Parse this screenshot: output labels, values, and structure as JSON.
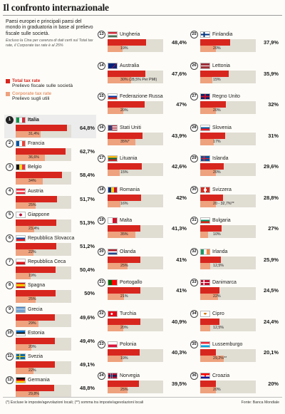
{
  "title": "Il confronto internazionale",
  "intro": {
    "text": "Paesi europei e principali paesi del mondo in graduatoria in base al prelievo fiscale sulle società.",
    "note": "Escluso la Cina per carenza di dati certi sul Total tax rate, il Corporate tax rate è al 25%"
  },
  "legend": {
    "total": {
      "label": "Total tax rate",
      "description": "Prelievo fiscale sulle società",
      "color": "#d7261e"
    },
    "corporate": {
      "label": "Corporate tax rate",
      "description": "Prelievo sugli utili",
      "color": "#eea27e"
    }
  },
  "footnote": "(*) Escluse le imposte/agevolazioni locali; (**) somma tra imposte/agevolazioni locali",
  "source": "Fonte: Banca Mondiale",
  "chart_data": {
    "type": "bar",
    "xlim": [
      0,
      70
    ],
    "series": [
      {
        "name": "Total tax rate",
        "key": "total"
      },
      {
        "name": "Corporate tax rate",
        "key": "corp"
      }
    ],
    "countries": [
      {
        "rank": "1",
        "name": "Italia",
        "flag": "it",
        "total": 64.8,
        "total_label": "64,8%",
        "corp": 31.4,
        "corp_label": "31,4%"
      },
      {
        "rank": "2",
        "name": "Francia",
        "flag": "fr",
        "total": 62.7,
        "total_label": "62,7%",
        "corp": 36.6,
        "corp_label": "36,6%"
      },
      {
        "rank": "3",
        "name": "Belgio",
        "flag": "be",
        "total": 58.4,
        "total_label": "58,4%",
        "corp": 34,
        "corp_label": "34%"
      },
      {
        "rank": "4",
        "name": "Austria",
        "flag": "at",
        "total": 51.7,
        "total_label": "51,7%",
        "corp": 25,
        "corp_label": "25%"
      },
      {
        "rank": "5",
        "name": "Giappone",
        "flag": "jp",
        "total": 51.3,
        "total_label": "51,3%",
        "corp": 23.4,
        "corp_label": "23,4%"
      },
      {
        "rank": "6",
        "name": "Repubblica Slovacca",
        "flag": "sk",
        "total": 51.2,
        "total_label": "51,2%",
        "corp": 22,
        "corp_label": "22%"
      },
      {
        "rank": "7",
        "name": "Repubblica Ceca",
        "flag": "cz",
        "total": 50.4,
        "total_label": "50,4%",
        "corp": 19,
        "corp_label": "19%"
      },
      {
        "rank": "8",
        "name": "Spagna",
        "flag": "es",
        "total": 50,
        "total_label": "50%",
        "corp": 25,
        "corp_label": "25%"
      },
      {
        "rank": "9",
        "name": "Grecia",
        "flag": "gr",
        "total": 49.6,
        "total_label": "49,6%",
        "corp": 29,
        "corp_label": "29%"
      },
      {
        "rank": "10",
        "name": "Estonia",
        "flag": "ee",
        "total": 49.4,
        "total_label": "49,4%",
        "corp": 20,
        "corp_label": "20%"
      },
      {
        "rank": "11",
        "name": "Svezia",
        "flag": "se",
        "total": 49.1,
        "total_label": "49,1%",
        "corp": 22,
        "corp_label": "22%"
      },
      {
        "rank": "12",
        "name": "Germania",
        "flag": "de",
        "total": 48.8,
        "total_label": "48,8%",
        "corp": 29.8,
        "corp_label": "29,8%"
      },
      {
        "rank": "13",
        "name": "Ungheria",
        "flag": "hu",
        "total": 48.4,
        "total_label": "48,4%",
        "corp": 19,
        "corp_label": "19%"
      },
      {
        "rank": "14",
        "name": "Australia",
        "flag": "au",
        "total": 47.6,
        "total_label": "47,6%",
        "corp": 30,
        "corp_label": "30% (28,5% Per PMI)"
      },
      {
        "rank": "15",
        "name": "Federazione Russa",
        "flag": "ru",
        "total": 47,
        "total_label": "47%",
        "corp": 20,
        "corp_label": "20%"
      },
      {
        "rank": "16",
        "name": "Stati Uniti",
        "flag": "us",
        "total": 43.9,
        "total_label": "43,9%",
        "corp": 35,
        "corp_label": "35%*"
      },
      {
        "rank": "17",
        "name": "Lituania",
        "flag": "lt",
        "total": 42.6,
        "total_label": "42,6%",
        "corp": 15,
        "corp_label": "15%"
      },
      {
        "rank": "18",
        "name": "Romania",
        "flag": "ro",
        "total": 42,
        "total_label": "42%",
        "corp": 16,
        "corp_label": "16%"
      },
      {
        "rank": "19",
        "name": "Malta",
        "flag": "mt",
        "total": 41.3,
        "total_label": "41,3%",
        "corp": 35,
        "corp_label": "35%"
      },
      {
        "rank": "20",
        "name": "Olanda",
        "flag": "nl",
        "total": 41,
        "total_label": "41%",
        "corp": 25,
        "corp_label": "25%"
      },
      {
        "rank": "21",
        "name": "Portogallo",
        "flag": "pt",
        "total": 41,
        "total_label": "41%",
        "corp": 21,
        "corp_label": "21%"
      },
      {
        "rank": "22",
        "name": "Turchia",
        "flag": "tr",
        "total": 40.9,
        "total_label": "40,9%",
        "corp": 20,
        "corp_label": "20%"
      },
      {
        "rank": "23",
        "name": "Polonia",
        "flag": "pl",
        "total": 40.3,
        "total_label": "40,3%",
        "corp": 19,
        "corp_label": "19%"
      },
      {
        "rank": "24",
        "name": "Norvegia",
        "flag": "no",
        "total": 39.5,
        "total_label": "39,5%",
        "corp": 25,
        "corp_label": "25%"
      },
      {
        "rank": "25",
        "name": "Finlandia",
        "flag": "fi",
        "total": 37.9,
        "total_label": "37,9%",
        "corp": 20,
        "corp_label": "20%"
      },
      {
        "rank": "26",
        "name": "Lettonia",
        "flag": "lv",
        "total": 35.9,
        "total_label": "35,9%",
        "corp": 15,
        "corp_label": "15%"
      },
      {
        "rank": "27",
        "name": "Regno Unito",
        "flag": "gb",
        "total": 32,
        "total_label": "32%",
        "corp": 20,
        "corp_label": "20%"
      },
      {
        "rank": "28",
        "name": "Slovenia",
        "flag": "si",
        "total": 31,
        "total_label": "31%",
        "corp": 17,
        "corp_label": "17%"
      },
      {
        "rank": "29",
        "name": "Islanda",
        "flag": "is",
        "total": 29.6,
        "total_label": "29,6%",
        "corp": 20,
        "corp_label": "20%"
      },
      {
        "rank": "30",
        "name": "Svizzera",
        "flag": "ch",
        "total": 28.8,
        "total_label": "28,8%",
        "corp": 20,
        "corp_label": "20 - 32,7%**"
      },
      {
        "rank": "31",
        "name": "Bulgaria",
        "flag": "bg",
        "total": 27,
        "total_label": "27%",
        "corp": 10,
        "corp_label": "10%"
      },
      {
        "rank": "32",
        "name": "Irlanda",
        "flag": "ie",
        "total": 25.9,
        "total_label": "25,9%",
        "corp": 12.5,
        "corp_label": "12,5%"
      },
      {
        "rank": "33",
        "name": "Danimarca",
        "flag": "dk",
        "total": 24.5,
        "total_label": "24,5%",
        "corp": 22,
        "corp_label": "22%"
      },
      {
        "rank": "34",
        "name": "Cipro",
        "flag": "cy",
        "total": 24.4,
        "total_label": "24,4%",
        "corp": 12.5,
        "corp_label": "12,5%"
      },
      {
        "rank": "35",
        "name": "Lussemburgo",
        "flag": "lu",
        "total": 20.1,
        "total_label": "20,1%",
        "corp": 29.2,
        "corp_label": "29,2%**"
      },
      {
        "rank": "36",
        "name": "Croazia",
        "flag": "hr",
        "total": 20,
        "total_label": "20%",
        "corp": 20,
        "corp_label": "20%"
      }
    ]
  }
}
